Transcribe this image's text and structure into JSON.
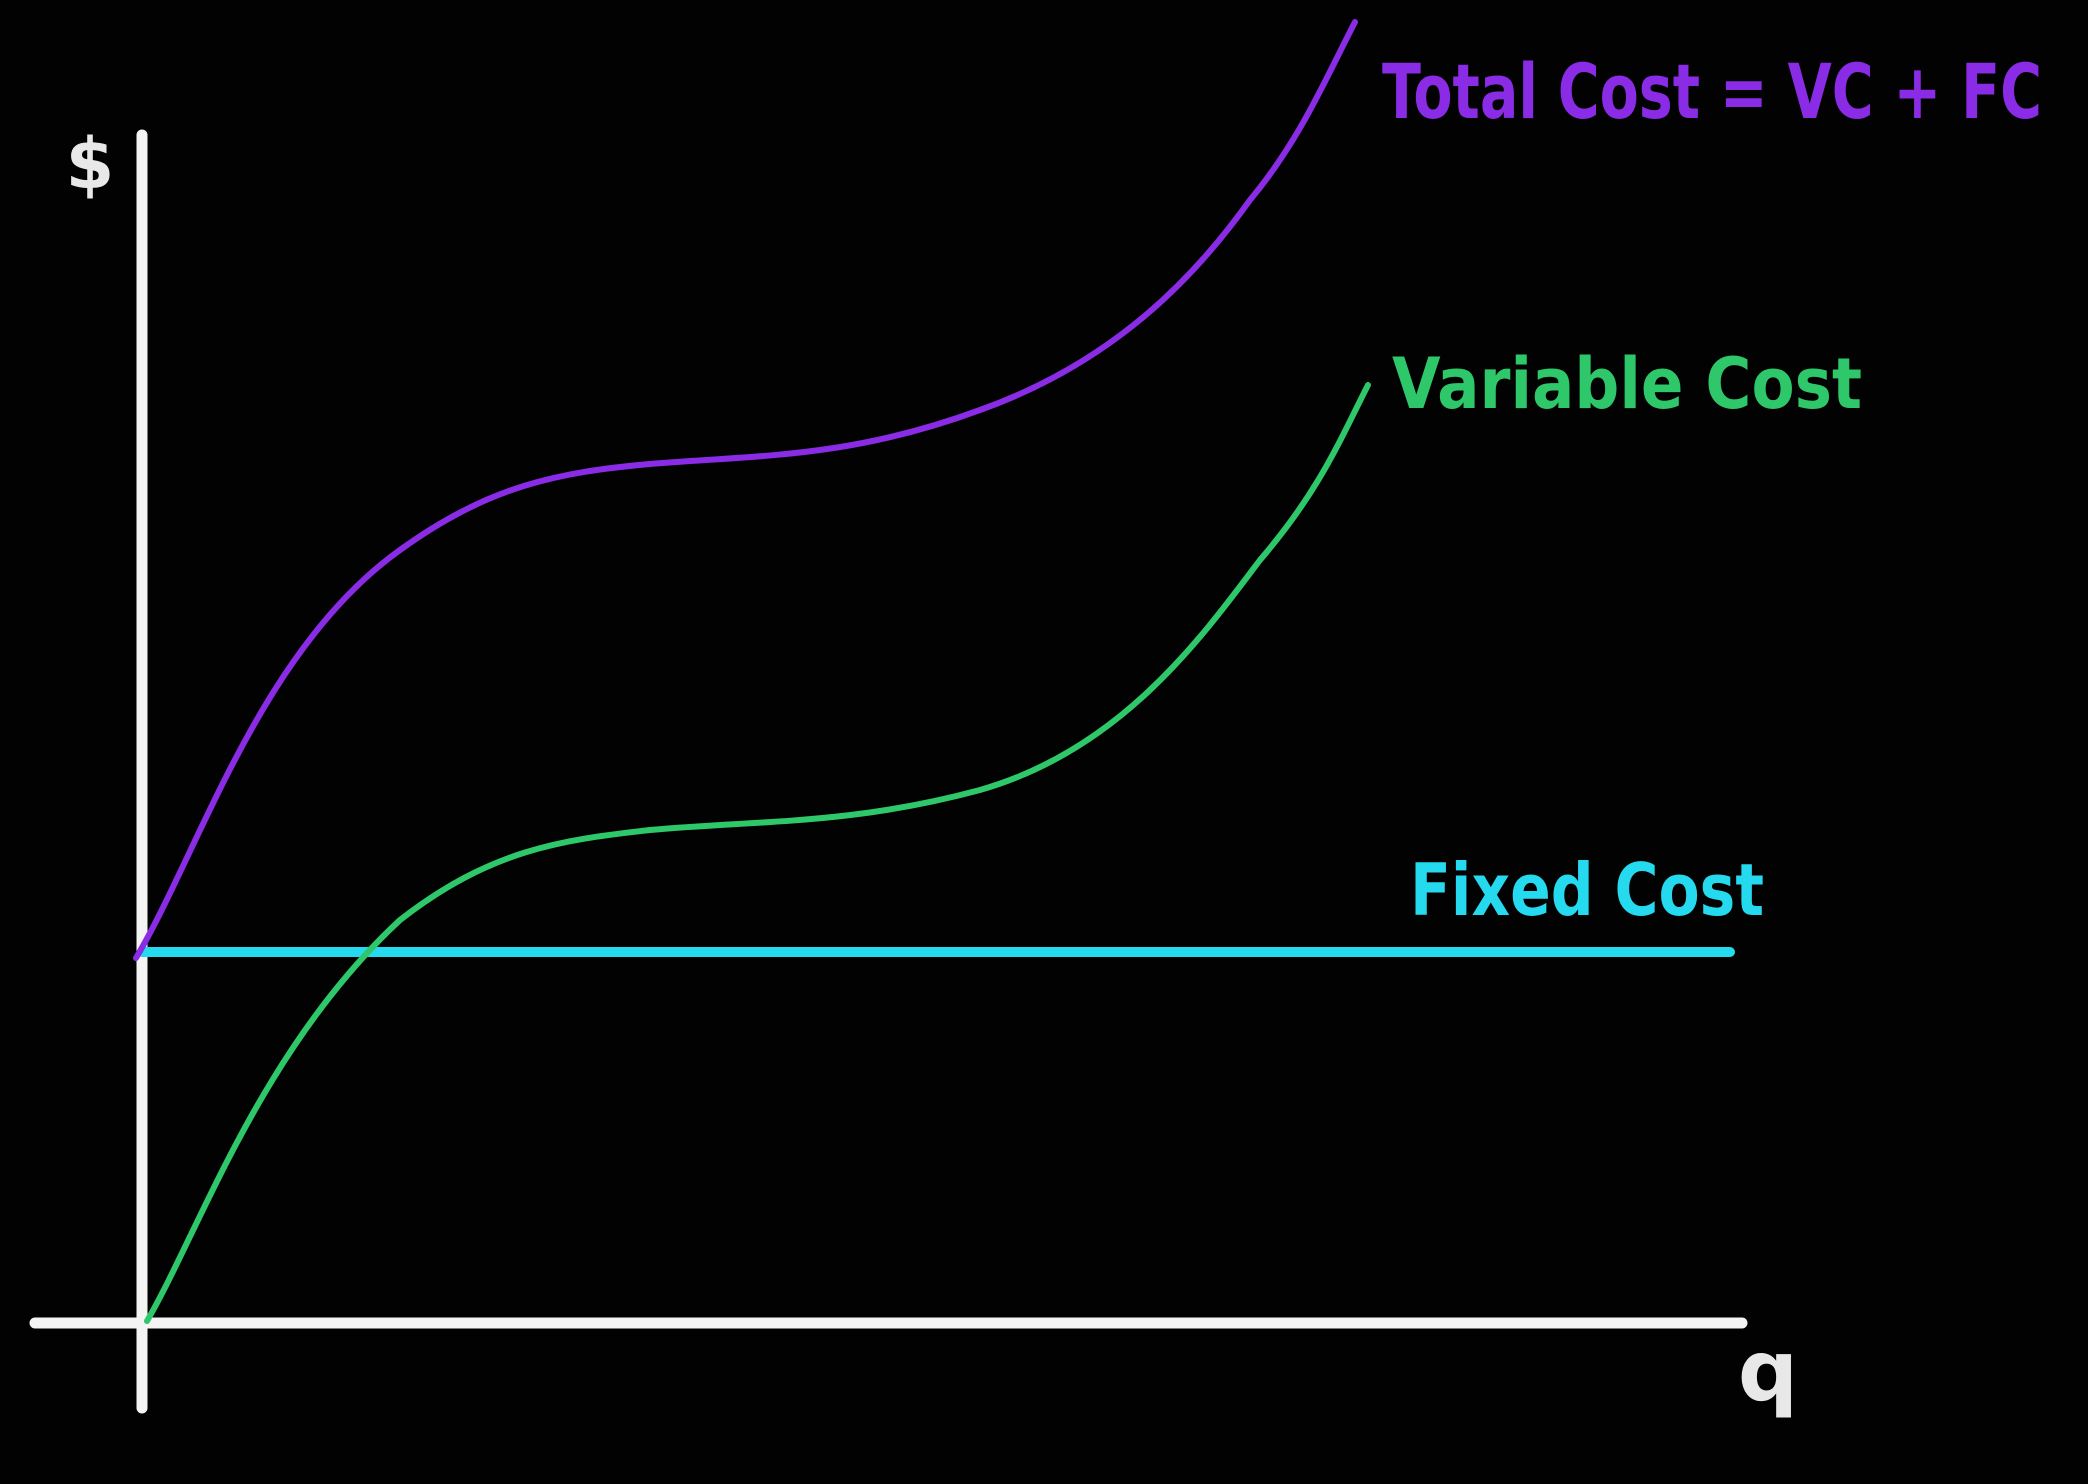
{
  "axes": {
    "y_label": "$",
    "x_label": "q",
    "color": "#f4f4f4"
  },
  "curves": {
    "total_cost": {
      "label": "Total Cost = VC + FC",
      "color": "#8a2be6"
    },
    "variable_cost": {
      "label": "Variable Cost",
      "color": "#2ec86b"
    },
    "fixed_cost": {
      "label": "Fixed Cost",
      "color": "#25d9ee"
    }
  }
}
